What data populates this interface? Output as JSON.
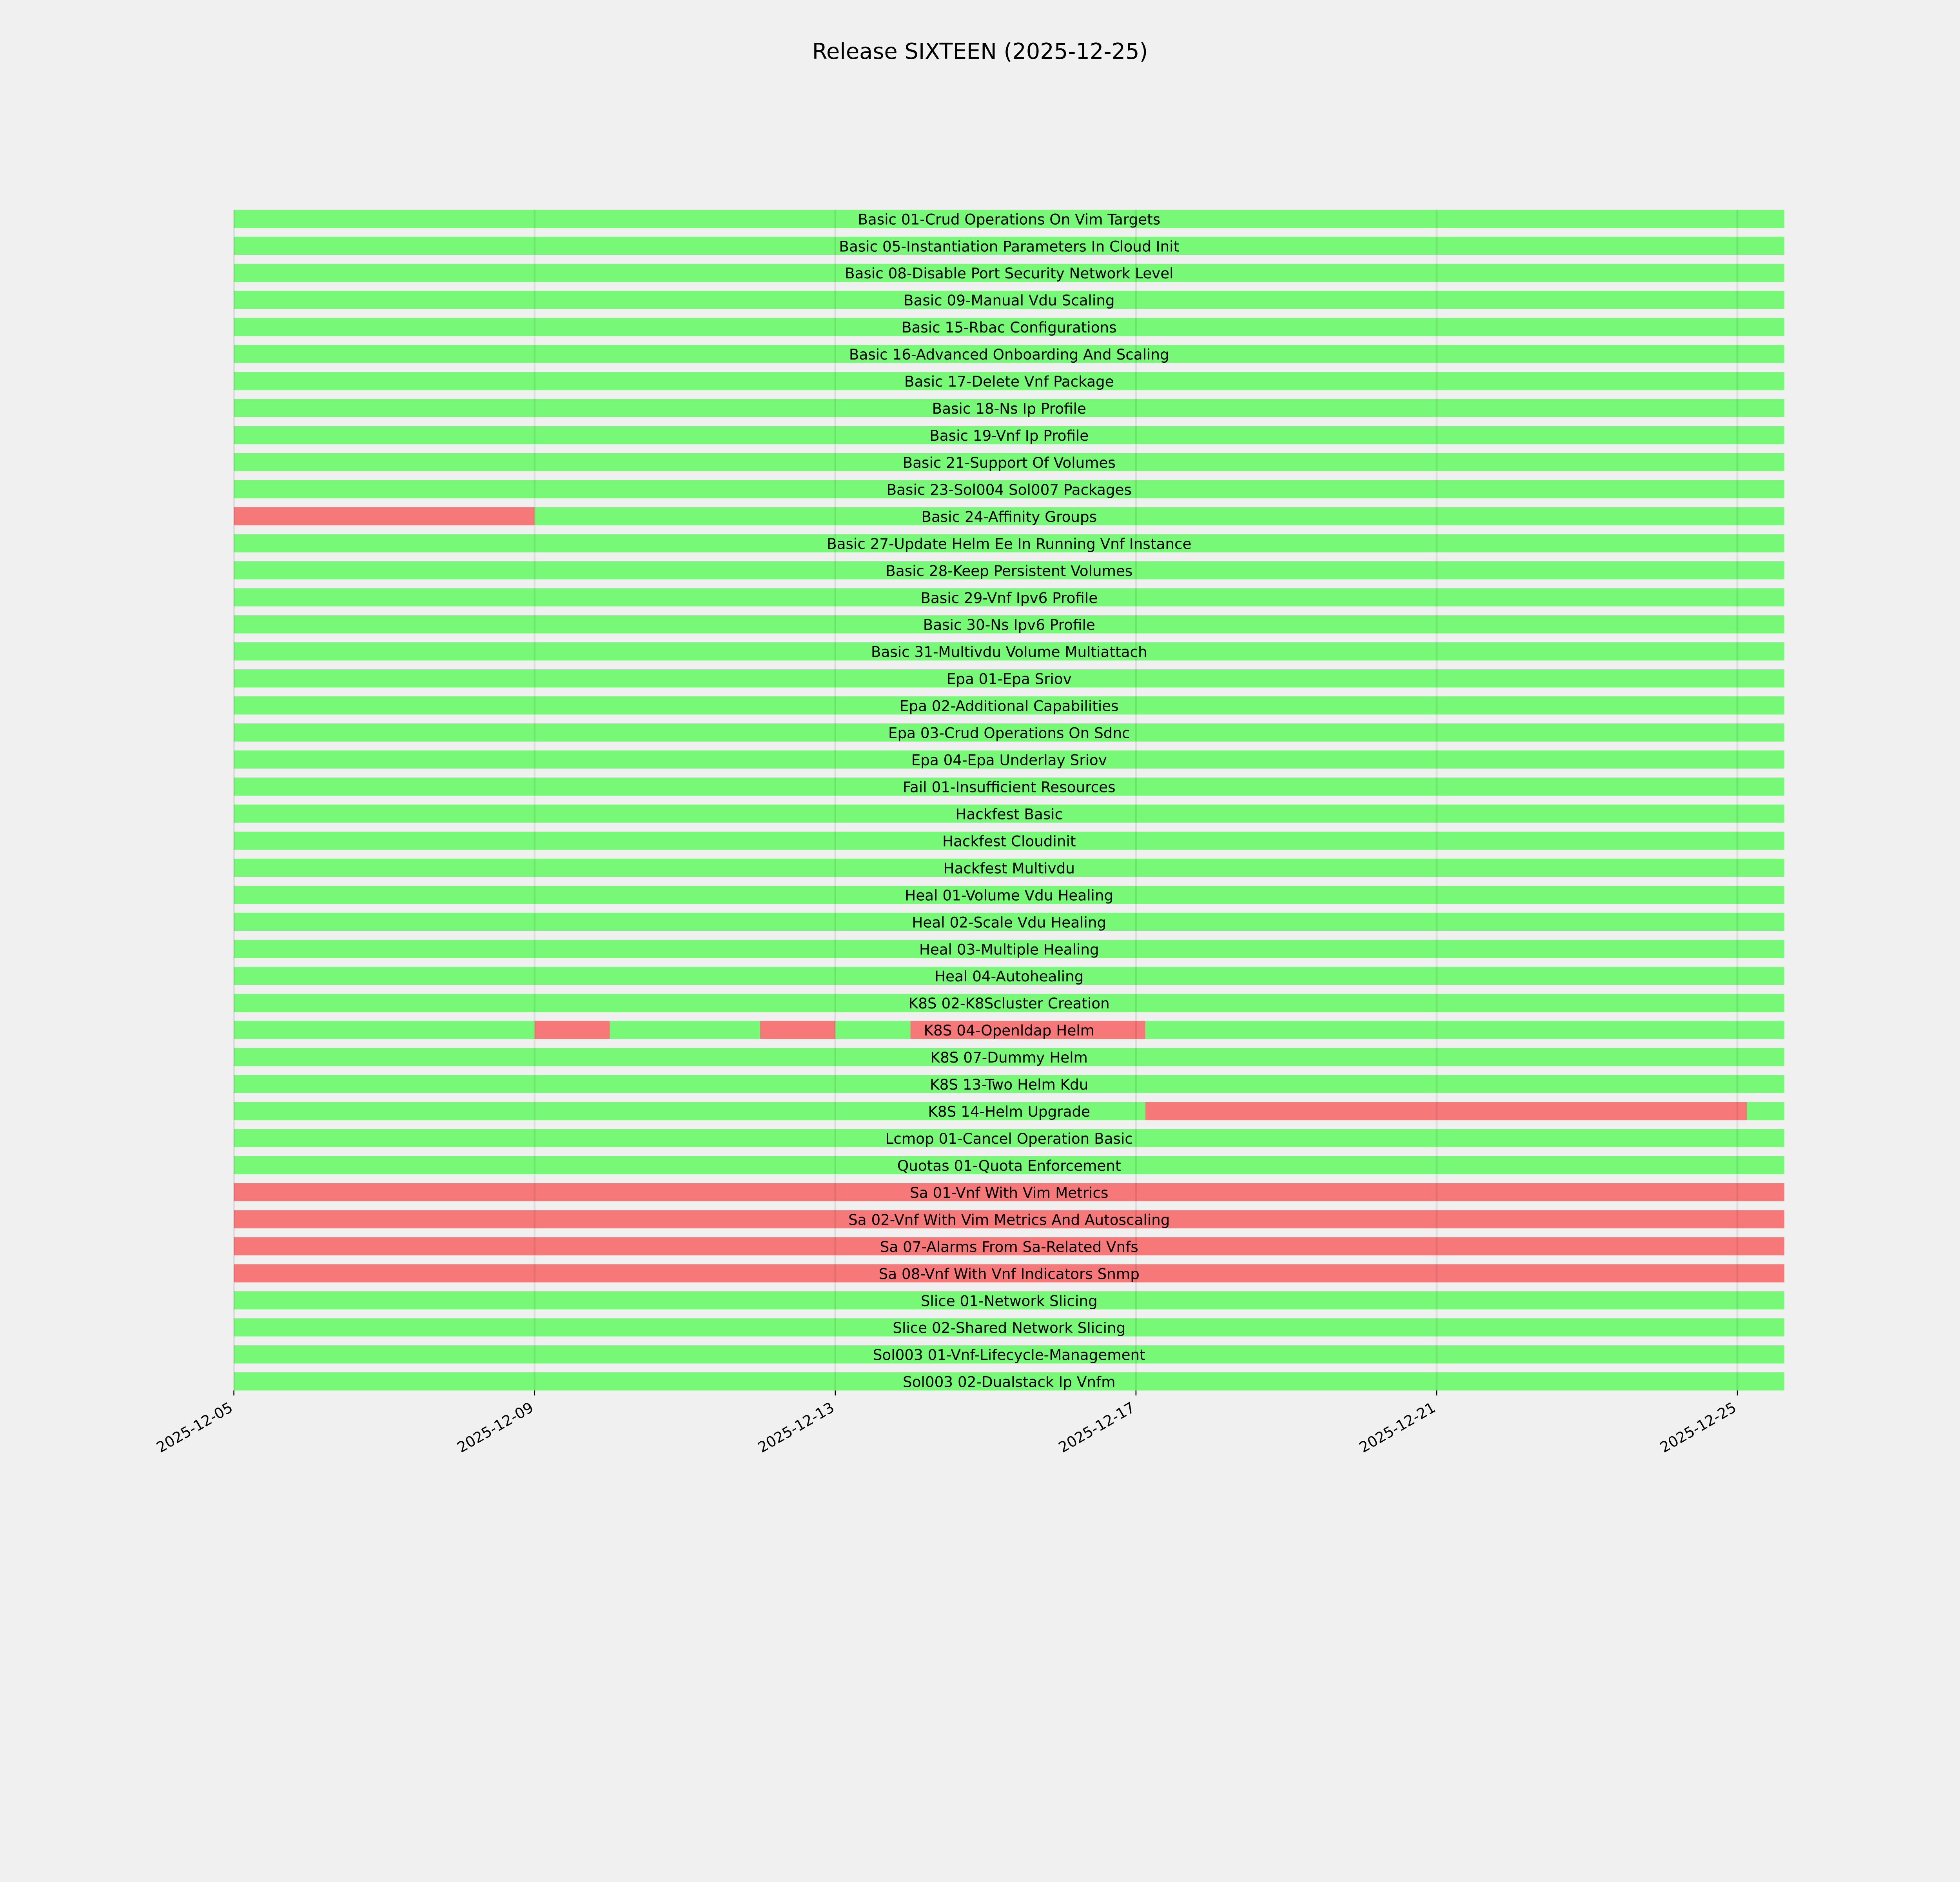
{
  "chart_data": {
    "type": "bar",
    "subtype": "gantt-timeline",
    "title": "Release SIXTEEN (2025-12-25)",
    "xlabel": "",
    "ylabel": "",
    "xlim": [
      "2025-12-05T00:00",
      "2025-12-25T15:00"
    ],
    "x_ticks": [
      "2025-12-05",
      "2025-12-09",
      "2025-12-13",
      "2025-12-17",
      "2025-12-21",
      "2025-12-25"
    ],
    "grid": true,
    "colors": {
      "pass": "#77f977",
      "fail": "#f77878",
      "background": "#f0f0f0"
    },
    "tasks": [
      {
        "name": "Basic 01-Crud Operations On Vim Targets",
        "segments": []
      },
      {
        "name": "Basic 05-Instantiation Parameters In Cloud Init",
        "segments": []
      },
      {
        "name": "Basic 08-Disable Port Security Network Level",
        "segments": []
      },
      {
        "name": "Basic 09-Manual Vdu Scaling",
        "segments": []
      },
      {
        "name": "Basic 15-Rbac Configurations",
        "segments": []
      },
      {
        "name": "Basic 16-Advanced Onboarding And Scaling",
        "segments": []
      },
      {
        "name": "Basic 17-Delete Vnf Package",
        "segments": []
      },
      {
        "name": "Basic 18-Ns Ip Profile",
        "segments": []
      },
      {
        "name": "Basic 19-Vnf Ip Profile",
        "segments": []
      },
      {
        "name": "Basic 21-Support Of Volumes",
        "segments": []
      },
      {
        "name": "Basic 23-Sol004 Sol007 Packages",
        "segments": []
      },
      {
        "name": "Basic 24-Affinity Groups",
        "segments": [
          {
            "start": "2025-12-05T00:00",
            "end": "2025-12-09T00:00",
            "status": "fail"
          },
          {
            "start": "2025-12-09T00:00",
            "end": "2025-12-25T15:00",
            "status": "pass"
          }
        ]
      },
      {
        "name": "Basic 27-Update Helm Ee In Running Vnf Instance",
        "segments": []
      },
      {
        "name": "Basic 28-Keep Persistent Volumes",
        "segments": []
      },
      {
        "name": "Basic 29-Vnf Ipv6 Profile",
        "segments": []
      },
      {
        "name": "Basic 30-Ns Ipv6 Profile",
        "segments": []
      },
      {
        "name": "Basic 31-Multivdu Volume Multiattach",
        "segments": []
      },
      {
        "name": "Epa 01-Epa Sriov",
        "segments": []
      },
      {
        "name": "Epa 02-Additional Capabilities",
        "segments": []
      },
      {
        "name": "Epa 03-Crud Operations On Sdnc",
        "segments": []
      },
      {
        "name": "Epa 04-Epa Underlay Sriov",
        "segments": []
      },
      {
        "name": "Fail 01-Insufficient Resources",
        "segments": []
      },
      {
        "name": "Hackfest Basic",
        "segments": []
      },
      {
        "name": "Hackfest Cloudinit",
        "segments": []
      },
      {
        "name": "Hackfest Multivdu",
        "segments": []
      },
      {
        "name": "Heal 01-Volume Vdu Healing",
        "segments": []
      },
      {
        "name": "Heal 02-Scale Vdu Healing",
        "segments": []
      },
      {
        "name": "Heal 03-Multiple Healing",
        "segments": []
      },
      {
        "name": "Heal 04-Autohealing",
        "segments": []
      },
      {
        "name": "K8S 02-K8Scluster Creation",
        "segments": []
      },
      {
        "name": "K8S 04-Openldap Helm",
        "segments": [
          {
            "start": "2025-12-05T00:00",
            "end": "2025-12-09T00:00",
            "status": "pass"
          },
          {
            "start": "2025-12-09T00:00",
            "end": "2025-12-10T00:00",
            "status": "fail"
          },
          {
            "start": "2025-12-10T00:00",
            "end": "2025-12-12T00:00",
            "status": "pass"
          },
          {
            "start": "2025-12-12T00:00",
            "end": "2025-12-13T00:00",
            "status": "fail"
          },
          {
            "start": "2025-12-13T00:00",
            "end": "2025-12-14T00:00",
            "status": "pass"
          },
          {
            "start": "2025-12-14T00:00",
            "end": "2025-12-17T03:00",
            "status": "fail"
          },
          {
            "start": "2025-12-17T03:00",
            "end": "2025-12-25T15:00",
            "status": "pass"
          }
        ]
      },
      {
        "name": "K8S 07-Dummy Helm",
        "segments": []
      },
      {
        "name": "K8S 13-Two Helm Kdu",
        "segments": []
      },
      {
        "name": "K8S 14-Helm Upgrade",
        "segments": [
          {
            "start": "2025-12-05T00:00",
            "end": "2025-12-17T03:00",
            "status": "pass"
          },
          {
            "start": "2025-12-17T03:00",
            "end": "2025-12-25T03:00",
            "status": "fail"
          },
          {
            "start": "2025-12-25T03:00",
            "end": "2025-12-25T15:00",
            "status": "pass"
          }
        ]
      },
      {
        "name": "Lcmop 01-Cancel Operation Basic",
        "segments": []
      },
      {
        "name": "Quotas 01-Quota Enforcement",
        "segments": []
      },
      {
        "name": "Sa 01-Vnf With Vim Metrics",
        "status": "fail",
        "segments": []
      },
      {
        "name": "Sa 02-Vnf With Vim Metrics And Autoscaling",
        "status": "fail",
        "segments": []
      },
      {
        "name": "Sa 07-Alarms From Sa-Related Vnfs",
        "status": "fail",
        "segments": []
      },
      {
        "name": "Sa 08-Vnf With Vnf Indicators Snmp",
        "status": "fail",
        "segments": []
      },
      {
        "name": "Slice 01-Network Slicing",
        "segments": []
      },
      {
        "name": "Slice 02-Shared Network Slicing",
        "segments": []
      },
      {
        "name": "Sol003 01-Vnf-Lifecycle-Management",
        "segments": []
      },
      {
        "name": "Sol003 02-Dualstack Ip Vnfm",
        "segments": []
      }
    ]
  }
}
